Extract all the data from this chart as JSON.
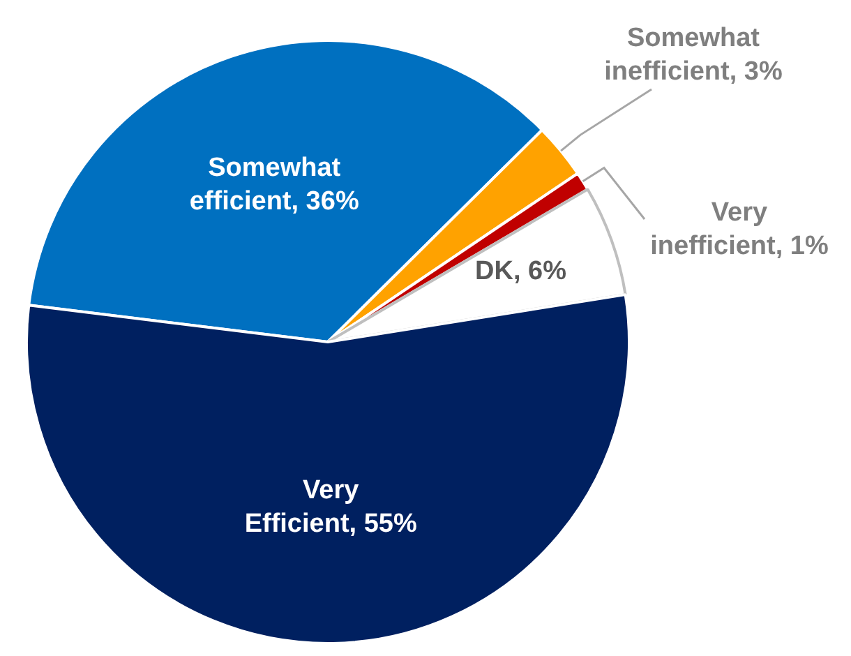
{
  "chart_data": {
    "type": "pie",
    "categories": [
      "Somewhat efficient",
      "Somewhat inefficient",
      "Very inefficient",
      "DK",
      "Very Efficient"
    ],
    "values": [
      36,
      3,
      1,
      6,
      55
    ],
    "value_labels": [
      "36%",
      "3%",
      "1%",
      "6%",
      "55%"
    ],
    "colors": [
      "#0070c0",
      "#ffa200",
      "#c00000",
      "#ffffff",
      "#002060"
    ],
    "legend": false
  }
}
